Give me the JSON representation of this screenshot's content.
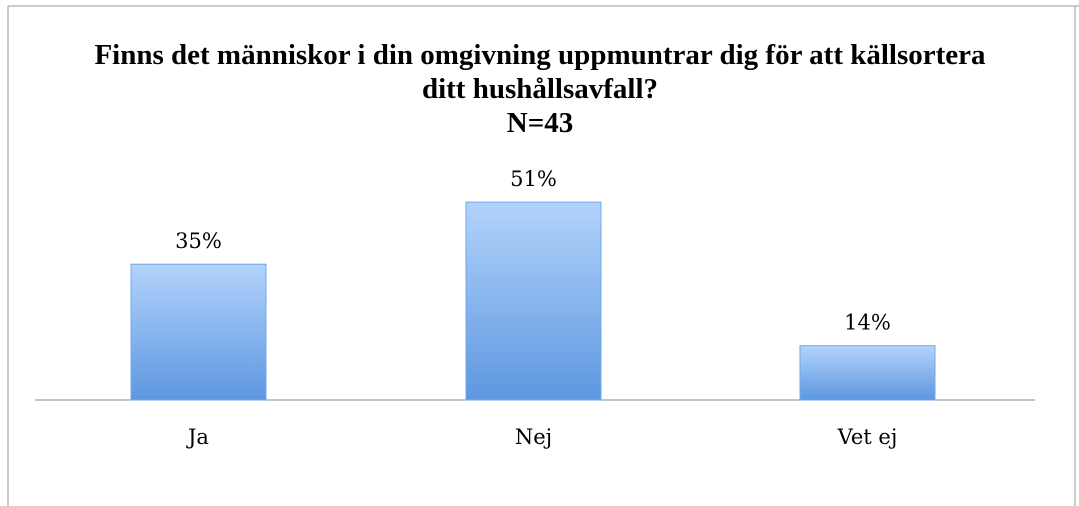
{
  "chart_data": {
    "type": "bar",
    "title": "Finns det människor i din omgivning uppmuntrar dig för att källsortera ditt hushållsavfall?",
    "subtitle": "N=43",
    "categories": [
      "Ja",
      "Nej",
      "Vet ej"
    ],
    "values": [
      35,
      51,
      14
    ],
    "value_labels": [
      "35%",
      "51%",
      "14%"
    ],
    "color": "#6fa8ec"
  }
}
